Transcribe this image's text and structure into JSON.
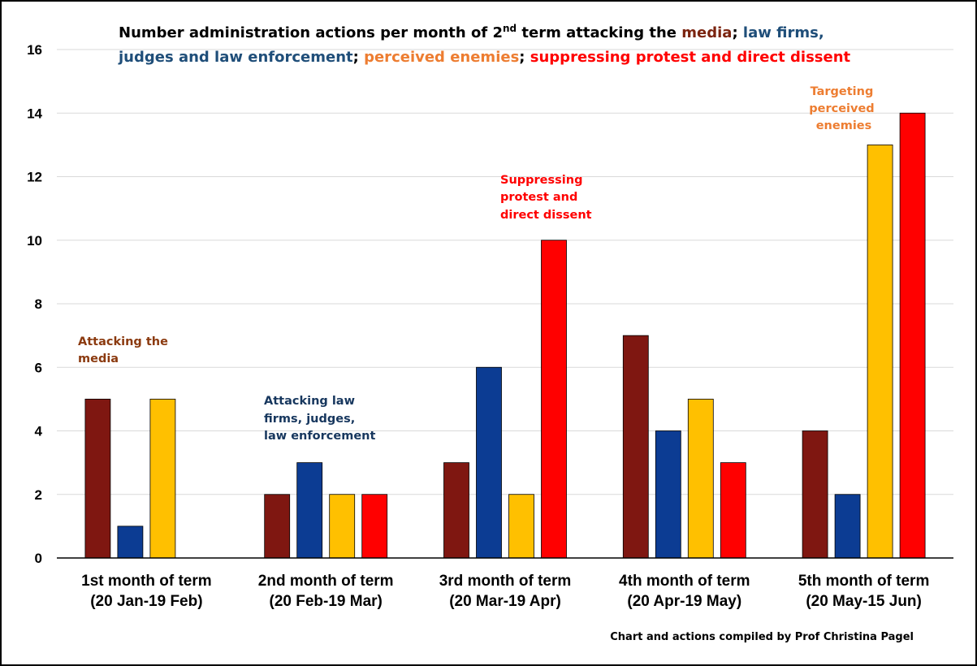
{
  "chart_data": {
    "type": "bar",
    "title_parts": [
      {
        "text": "Number administration actions per month of 2",
        "color": "#000000"
      },
      {
        "text": "nd",
        "color": "#000000",
        "superscript": true
      },
      {
        "text": " term attacking the ",
        "color": "#000000"
      },
      {
        "text": "media",
        "color": "#7b2410"
      },
      {
        "text": "; ",
        "color": "#000000"
      },
      {
        "text": "law firms,",
        "color": "#1f4e79"
      },
      {
        "text": "judges and law enforcement",
        "color": "#1f4e79",
        "newline": true
      },
      {
        "text": "; ",
        "color": "#000000"
      },
      {
        "text": "perceived enemies",
        "color": "#ed7d31"
      },
      {
        "text": "; ",
        "color": "#000000"
      },
      {
        "text": "suppressing protest and direct dissent",
        "color": "#ff0000"
      }
    ],
    "categories": [
      [
        "1st month of term",
        "(20 Jan-19 Feb)"
      ],
      [
        "2nd month of term",
        "(20 Feb-19 Mar)"
      ],
      [
        "3rd month of term",
        "(20 Mar-19 Apr)"
      ],
      [
        "4th month of term",
        "(20 Apr-19 May)"
      ],
      [
        "5th month of term",
        "(20 May-15 Jun)"
      ]
    ],
    "series": [
      {
        "name": "media",
        "color": "#7f1711",
        "values": [
          5,
          2,
          3,
          7,
          4
        ]
      },
      {
        "name": "law firms, judges and law enforcement",
        "color": "#0c3c93",
        "values": [
          1,
          3,
          6,
          4,
          2
        ]
      },
      {
        "name": "perceived enemies",
        "color": "#ffc000",
        "values": [
          5,
          2,
          2,
          5,
          13
        ]
      },
      {
        "name": "suppressing protest and direct dissent",
        "color": "#ff0000",
        "values": [
          0,
          2,
          10,
          3,
          14
        ]
      }
    ],
    "ylim": [
      0,
      16
    ],
    "yticks": [
      0,
      2,
      4,
      6,
      8,
      10,
      12,
      14,
      16
    ],
    "grid": true,
    "annotations": [
      {
        "lines": [
          "Attacking the",
          "media"
        ],
        "color": "#8b3a0f",
        "near": "1st month, media bar"
      },
      {
        "lines": [
          "Attacking law",
          "firms, judges,",
          "law enforcement"
        ],
        "color": "#17375e",
        "near": "2nd month, law bar"
      },
      {
        "lines": [
          "Suppressing",
          "protest and",
          "direct dissent"
        ],
        "color": "#ff0000",
        "near": "3rd month, protest bar"
      },
      {
        "lines": [
          "Targeting",
          "perceived",
          "enemies"
        ],
        "color": "#ed7d31",
        "near": "5th month, enemies bar"
      }
    ],
    "credit": "Chart and actions compiled by Prof Christina Pagel"
  }
}
